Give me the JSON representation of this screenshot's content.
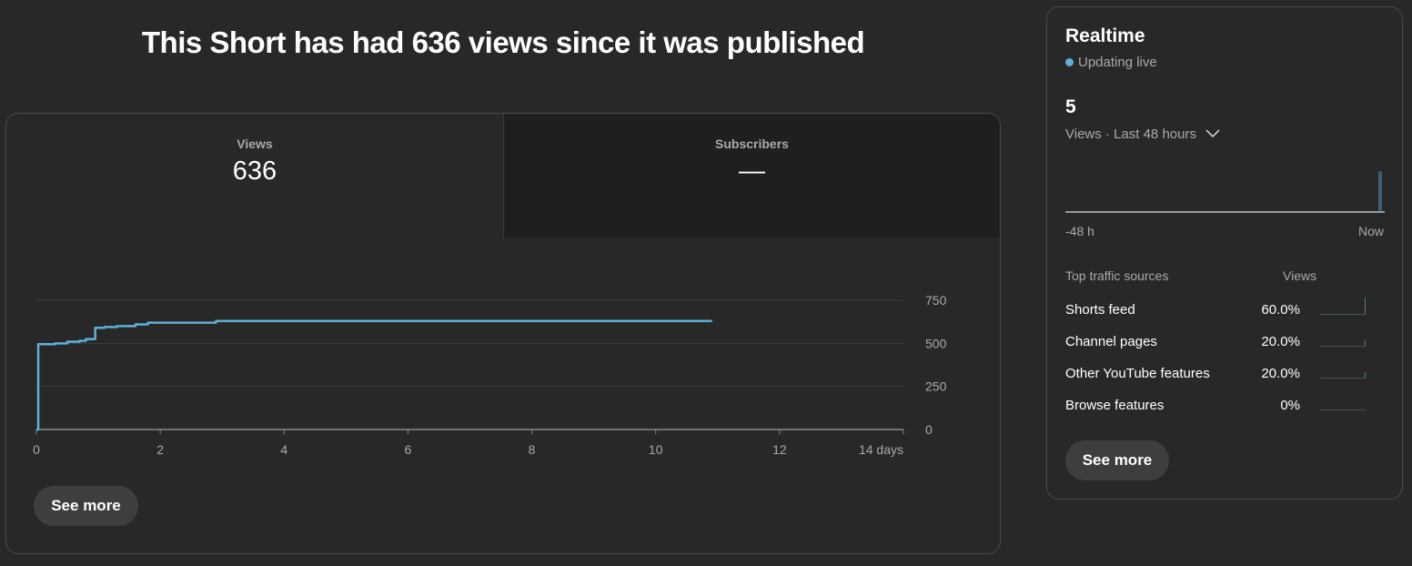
{
  "page_title": "This Short has had 636 views since it was published",
  "tabs": [
    {
      "label": "Views",
      "value": "636"
    },
    {
      "label": "Subscribers",
      "value": "—"
    }
  ],
  "see_more": "See more",
  "chart_data": {
    "type": "line",
    "x_unit": "days",
    "x_ticks": [
      "0",
      "2",
      "4",
      "6",
      "8",
      "10",
      "12",
      "14 days"
    ],
    "y_ticks": [
      "0",
      "250",
      "500",
      "750"
    ],
    "xlim": [
      0,
      14
    ],
    "ylim": [
      0,
      750
    ],
    "grid": true,
    "color": "#5fb0d8",
    "x": [
      0,
      0.03,
      0.3,
      0.5,
      0.7,
      0.8,
      0.95,
      1.1,
      1.3,
      1.6,
      1.8,
      2.85,
      2.9,
      10.9
    ],
    "y": [
      0,
      495,
      500,
      510,
      515,
      525,
      590,
      595,
      600,
      610,
      620,
      620,
      630,
      632
    ]
  },
  "realtime": {
    "title": "Realtime",
    "status": "Updating live",
    "count": "5",
    "selector": "Views · Last 48 hours",
    "axis_start": "-48 h",
    "axis_end": "Now",
    "bar_color": "#3f5f70",
    "traffic_header": "Top traffic sources",
    "views_header": "Views",
    "sources": [
      {
        "name": "Shorts feed",
        "pct": "60.0%",
        "value": 60
      },
      {
        "name": "Channel pages",
        "pct": "20.0%",
        "value": 20
      },
      {
        "name": "Other YouTube features",
        "pct": "20.0%",
        "value": 20
      },
      {
        "name": "Browse features",
        "pct": "0%",
        "value": 0
      }
    ],
    "see_more": "See more"
  }
}
